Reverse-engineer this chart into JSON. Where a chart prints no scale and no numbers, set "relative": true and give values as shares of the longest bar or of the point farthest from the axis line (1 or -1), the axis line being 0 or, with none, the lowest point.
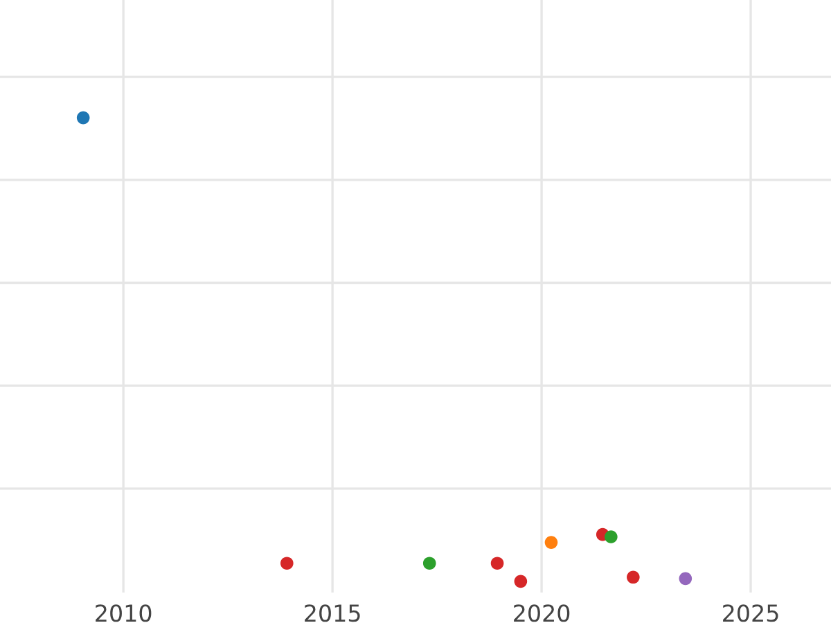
{
  "chart_data": {
    "type": "scatter",
    "relative": true,
    "grid": true,
    "marker": "circle",
    "xlim": [
      2007.05,
      2026.92
    ],
    "xticks": [
      2010,
      2015,
      2020,
      2025
    ],
    "series": [
      {
        "color": "#1f77b4",
        "x": [
          2009.04
        ],
        "values": [
          1.0
        ]
      },
      {
        "color": "#d62728",
        "x": [
          2013.91,
          2018.94,
          2019.5,
          2021.46,
          2022.19
        ],
        "values": [
          0.039,
          0.039,
          0.0,
          0.101,
          0.009
        ]
      },
      {
        "color": "#2ca02c",
        "x": [
          2017.32,
          2021.66
        ],
        "values": [
          0.039,
          0.096
        ]
      },
      {
        "color": "#ff7f0e",
        "x": [
          2020.23
        ],
        "values": [
          0.084
        ]
      },
      {
        "color": "#9467bd",
        "x": [
          2023.44
        ],
        "values": [
          0.006
        ]
      }
    ]
  }
}
